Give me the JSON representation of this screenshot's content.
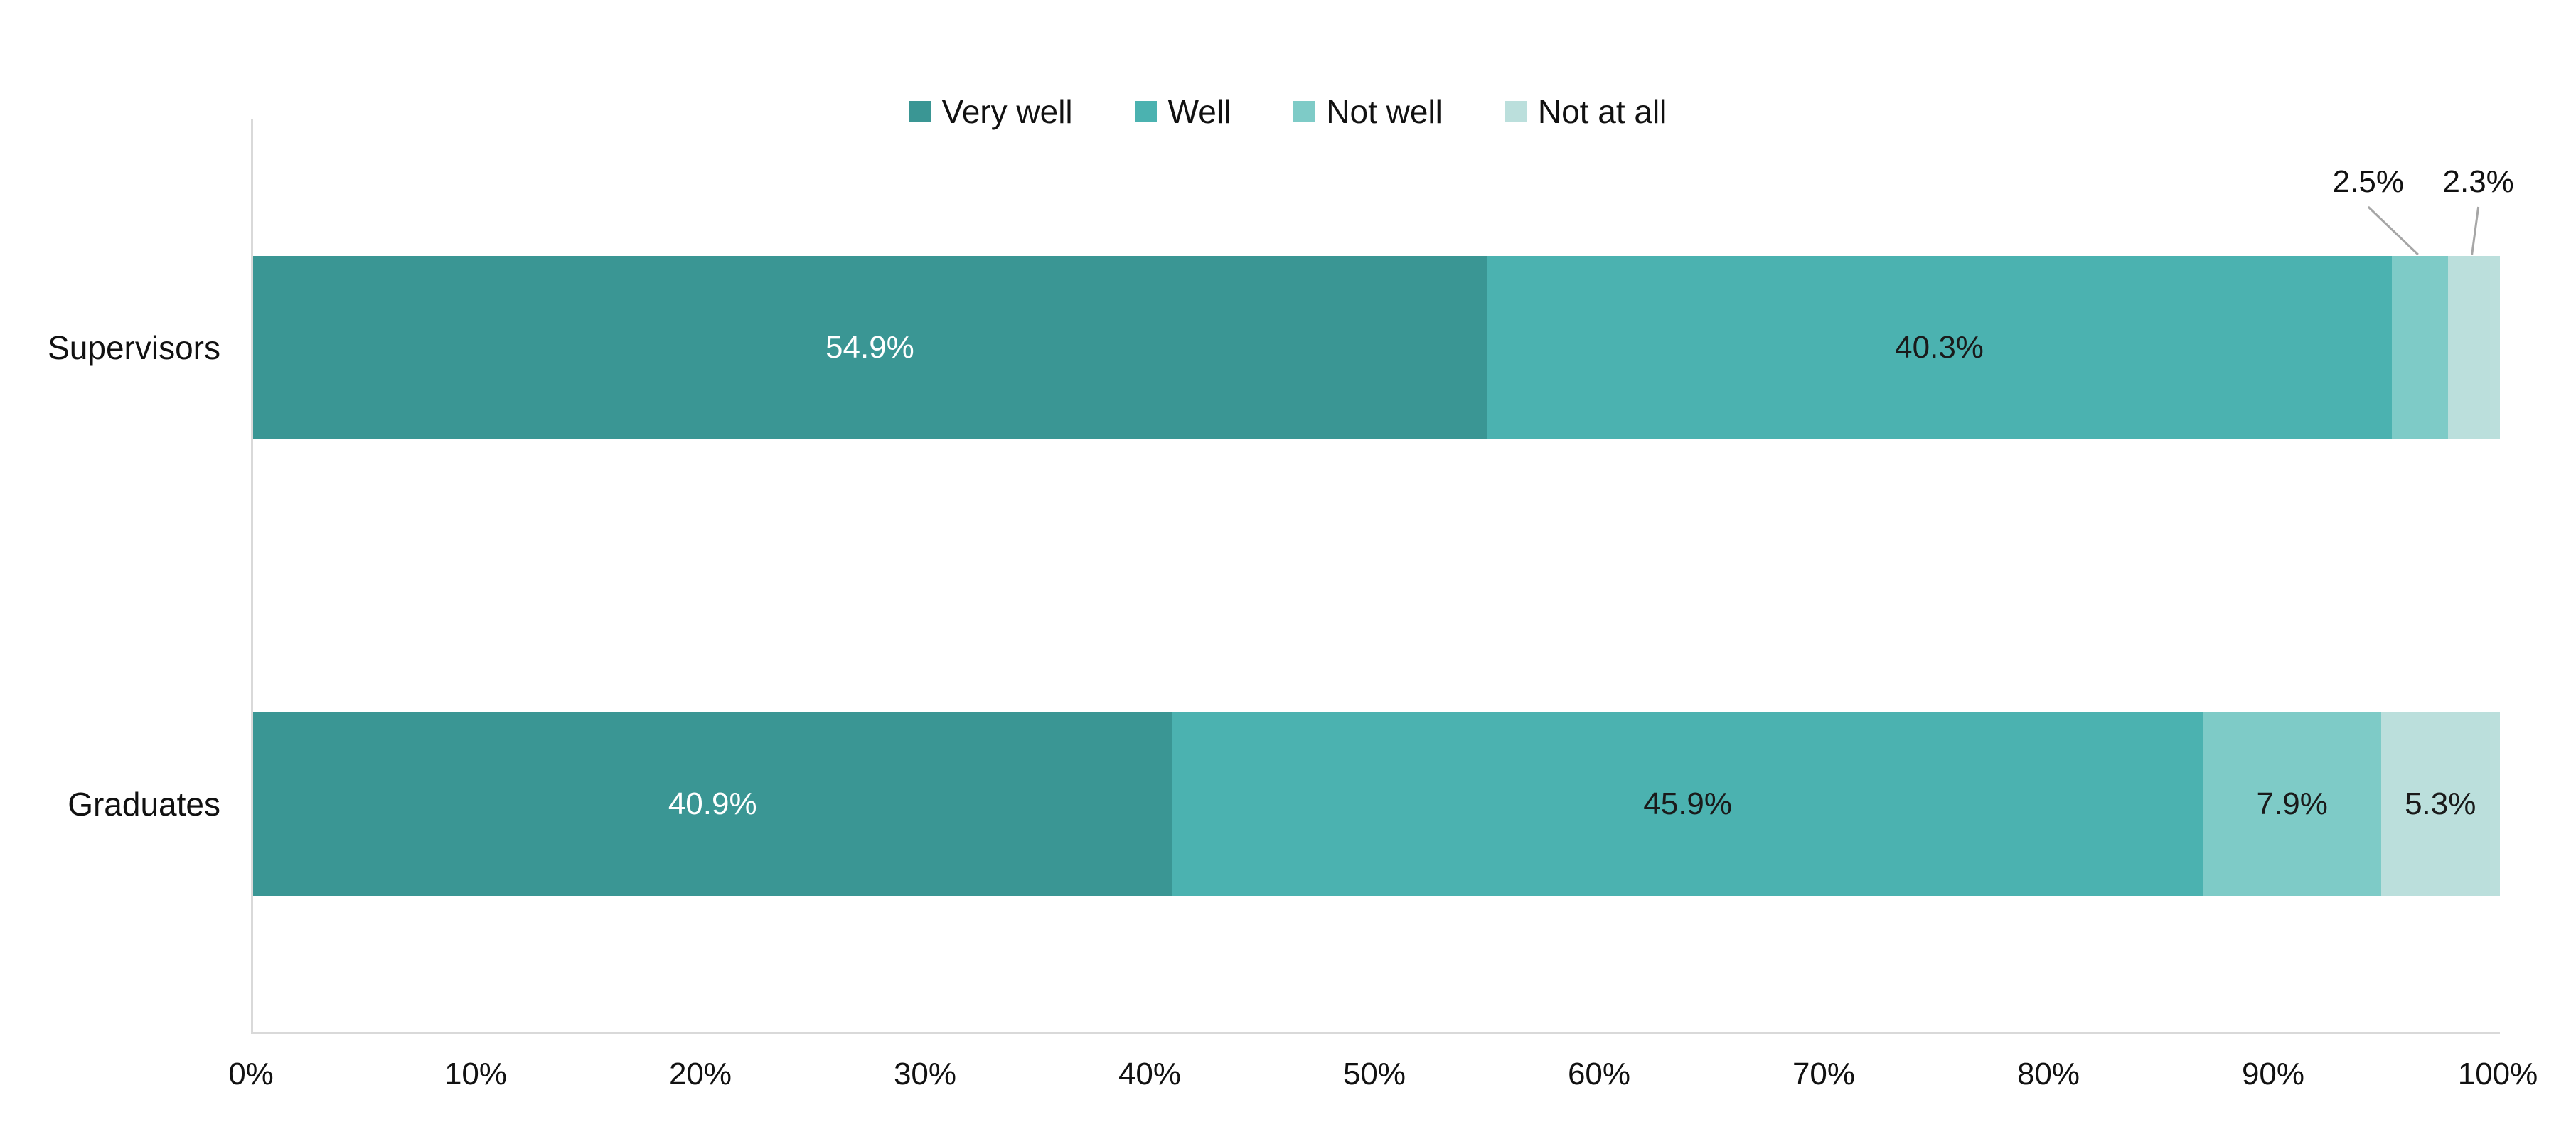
{
  "chart_data": {
    "type": "bar",
    "orientation": "horizontal",
    "stacked": true,
    "title": "",
    "xlabel": "",
    "ylabel": "",
    "categories": [
      "Supervisors",
      "Graduates"
    ],
    "series": [
      {
        "name": "Very well",
        "color": "#3A9694",
        "label_color": "#FFFFFF",
        "values": [
          54.9,
          40.9
        ]
      },
      {
        "name": "Well",
        "color": "#4BB2B0",
        "label_color": "#1A1A1A",
        "values": [
          40.3,
          45.9
        ]
      },
      {
        "name": "Not well",
        "color": "#7ECBC7",
        "label_color": "#1A1A1A",
        "values": [
          2.5,
          7.9
        ]
      },
      {
        "name": "Not at all",
        "color": "#BBDFDC",
        "label_color": "#1A1A1A",
        "values": [
          2.3,
          5.3
        ]
      }
    ],
    "value_suffix": "%",
    "xlim": [
      0,
      100
    ],
    "tick_labels": [
      "0%",
      "10%",
      "20%",
      "30%",
      "40%",
      "50%",
      "60%",
      "70%",
      "80%",
      "90%",
      "100%"
    ],
    "grid": false,
    "legend_position": "top",
    "callout_values": [
      "2.5%",
      "2.3%"
    ]
  },
  "colors": {
    "background": "#FFFFFF",
    "axis_line": "#D9D9D9",
    "leader_line": "#A6A6A6",
    "text_dark": "#111111",
    "text_light": "#FFFFFF"
  }
}
